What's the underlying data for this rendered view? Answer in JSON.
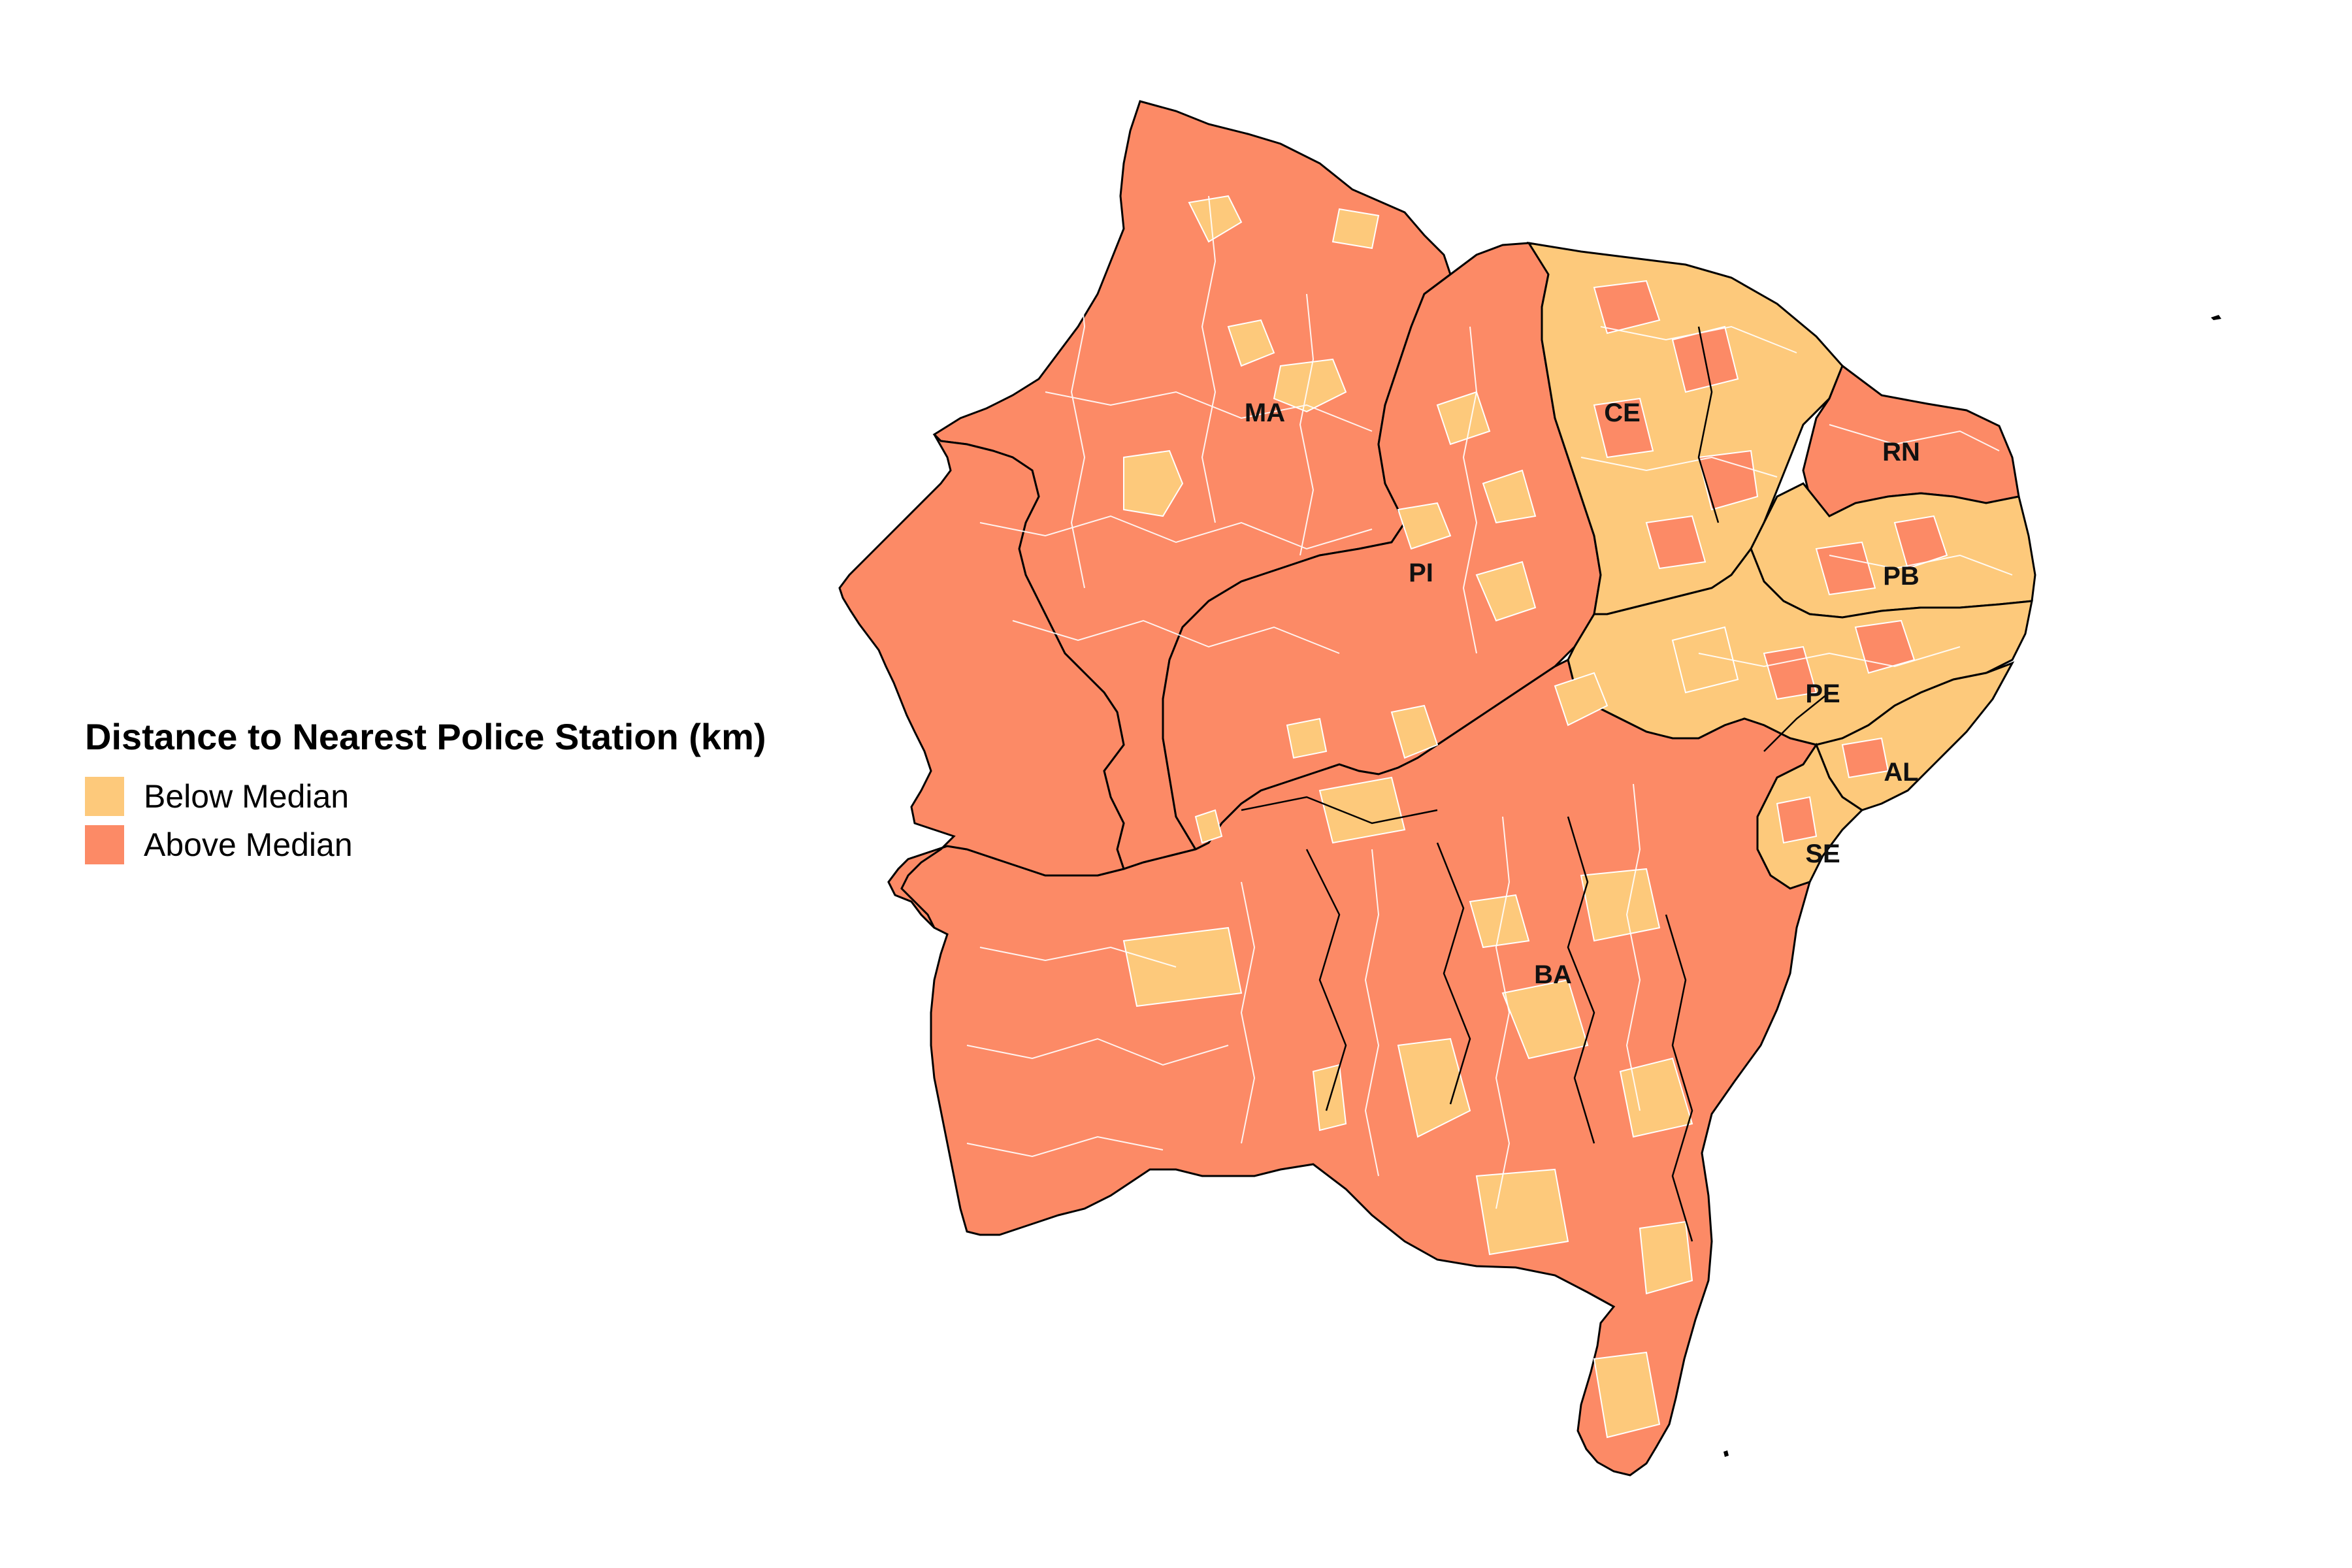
{
  "legend": {
    "title": "Distance to Nearest Police Station (km)",
    "items": [
      {
        "label": "Below Median",
        "color": "#FDC97B"
      },
      {
        "label": "Above Median",
        "color": "#FC8A66"
      }
    ]
  },
  "states": [
    {
      "abbr": "MA",
      "fill": "above"
    },
    {
      "abbr": "PI",
      "fill": "above"
    },
    {
      "abbr": "CE",
      "fill": "below"
    },
    {
      "abbr": "RN",
      "fill": "above"
    },
    {
      "abbr": "PB",
      "fill": "below"
    },
    {
      "abbr": "PE",
      "fill": "below"
    },
    {
      "abbr": "AL",
      "fill": "below"
    },
    {
      "abbr": "SE",
      "fill": "below"
    },
    {
      "abbr": "BA",
      "fill": "above"
    }
  ],
  "colors": {
    "background": "#FFFFFF",
    "municipality_border": "#FFFFFF",
    "state_border": "#000000"
  }
}
